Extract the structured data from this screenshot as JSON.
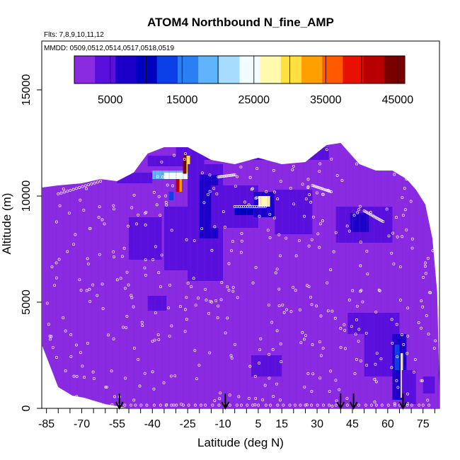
{
  "chart_data": {
    "type": "heatmap",
    "title": "ATOM4 Northbound N_fine_AMP",
    "annotations": {
      "flights": "Flts: 7,8,9,10,11,12",
      "dates": "MMDD: 0509,0512,0514,0517,0518,0519"
    },
    "xlabel": "Latitude (deg N)",
    "ylabel": "Altitude (m)",
    "xlim": [
      -87,
      82
    ],
    "ylim": [
      0,
      17300
    ],
    "x_ticks": [
      -85,
      -70,
      -55,
      -40,
      -25,
      -10,
      5,
      15,
      30,
      45,
      60,
      75
    ],
    "y_ticks": [
      0,
      5000,
      10000,
      15000
    ],
    "colorbar": {
      "min": 0,
      "max": 46000,
      "ticks": [
        5000,
        15000,
        25000,
        35000,
        45000
      ],
      "colors": [
        "#8a2be2",
        "#5a10dc",
        "#1a00c8",
        "#0000c0",
        "#0a40e6",
        "#2a7ff2",
        "#5fb4fa",
        "#a8dcff",
        "#f2fbff",
        "#fffab0",
        "#ffe040",
        "#ffa000",
        "#ff5a00",
        "#e81000",
        "#b80000",
        "#7a0000"
      ]
    },
    "background_value": 2000,
    "envelope_top": [
      [
        -87,
        10400
      ],
      [
        -80,
        10500
      ],
      [
        -70,
        10600
      ],
      [
        -62,
        10800
      ],
      [
        -55,
        10700
      ],
      [
        -48,
        11100
      ],
      [
        -42,
        12000
      ],
      [
        -35,
        12300
      ],
      [
        -25,
        12300
      ],
      [
        -15,
        11700
      ],
      [
        -5,
        11500
      ],
      [
        5,
        11800
      ],
      [
        15,
        11500
      ],
      [
        25,
        11600
      ],
      [
        34,
        12400
      ],
      [
        40,
        12500
      ],
      [
        48,
        11500
      ],
      [
        55,
        11200
      ],
      [
        62,
        11200
      ],
      [
        68,
        10800
      ],
      [
        72,
        10300
      ],
      [
        76,
        9600
      ],
      [
        79,
        8000
      ],
      [
        81,
        5500
      ],
      [
        82,
        1000
      ]
    ],
    "envelope_bottom": [
      [
        -87,
        3000
      ],
      [
        -80,
        1000
      ],
      [
        -74,
        600
      ],
      [
        -69,
        500
      ],
      [
        -60,
        200
      ],
      [
        -50,
        0
      ],
      [
        82,
        0
      ]
    ],
    "features": [
      {
        "x": [
          -30,
          35
        ],
        "y": [
          11700,
          12300
        ],
        "value": 5500
      },
      {
        "x": [
          -42,
          -18
        ],
        "y": [
          11400,
          11900
        ],
        "value": 4500
      },
      {
        "x": [
          -55,
          -40
        ],
        "y": [
          10600,
          11100
        ],
        "value": 3000
      },
      {
        "x": [
          -40,
          -26
        ],
        "y": [
          10800,
          11200
        ],
        "value": 18000
      },
      {
        "x": [
          -35,
          -22
        ],
        "y": [
          10800,
          11100
        ],
        "value": 23000
      },
      {
        "x": [
          -27,
          -25.5
        ],
        "y": [
          11050,
          11900
        ],
        "value": 44000
      },
      {
        "x": [
          -25.5,
          -24
        ],
        "y": [
          11100,
          11900
        ],
        "value": 30000
      },
      {
        "x": [
          -30,
          -28.5
        ],
        "y": [
          10200,
          10800
        ],
        "value": 41000
      },
      {
        "x": [
          -28.5,
          -27.5
        ],
        "y": [
          10200,
          10800
        ],
        "value": 33000
      },
      {
        "x": [
          -33,
          -31
        ],
        "y": [
          9800,
          10200
        ],
        "value": 13000
      },
      {
        "x": [
          -25,
          -10
        ],
        "y": [
          6000,
          11500
        ],
        "value": 4000
      },
      {
        "x": [
          -20,
          -12
        ],
        "y": [
          8000,
          11000
        ],
        "value": 7000
      },
      {
        "x": [
          -35,
          -25
        ],
        "y": [
          6500,
          9500
        ],
        "value": 4500
      },
      {
        "x": [
          -50,
          -36
        ],
        "y": [
          7000,
          9000
        ],
        "value": 5000
      },
      {
        "x": [
          -15,
          5
        ],
        "y": [
          8500,
          10500
        ],
        "value": 4000
      },
      {
        "x": [
          3,
          12
        ],
        "y": [
          9000,
          10200
        ],
        "value": 7000
      },
      {
        "x": [
          5,
          10
        ],
        "y": [
          9500,
          10000
        ],
        "value": 26000
      },
      {
        "x": [
          -5,
          3
        ],
        "y": [
          9100,
          9500
        ],
        "value": 9000
      },
      {
        "x": [
          12,
          28
        ],
        "y": [
          8200,
          10300
        ],
        "value": 4000
      },
      {
        "x": [
          38,
          62
        ],
        "y": [
          7800,
          9500
        ],
        "value": 4500
      },
      {
        "x": [
          44,
          52
        ],
        "y": [
          8300,
          9200
        ],
        "value": 8000
      },
      {
        "x": [
          -42,
          -34
        ],
        "y": [
          4600,
          5300
        ],
        "value": 4000
      },
      {
        "x": [
          2,
          15
        ],
        "y": [
          1500,
          2500
        ],
        "value": 5000
      },
      {
        "x": [
          43,
          65
        ],
        "y": [
          3500,
          4500
        ],
        "value": 4500
      },
      {
        "x": [
          50,
          63
        ],
        "y": [
          1500,
          3500
        ],
        "value": 5500
      },
      {
        "x": [
          62,
          68
        ],
        "y": [
          400,
          3500
        ],
        "value": 7000
      },
      {
        "x": [
          63,
          65
        ],
        "y": [
          1800,
          3000
        ],
        "value": 14000
      },
      {
        "x": [
          65.5,
          66.5
        ],
        "y": [
          500,
          2600
        ],
        "value": 27000
      },
      {
        "x": [
          66,
          72
        ],
        "y": [
          200,
          1800
        ],
        "value": 5000
      },
      {
        "x": [
          75,
          80
        ],
        "y": [
          700,
          1500
        ],
        "value": 4000
      }
    ],
    "arrows_latitude": [
      -54,
      -9,
      40,
      45.5,
      66.5
    ]
  }
}
